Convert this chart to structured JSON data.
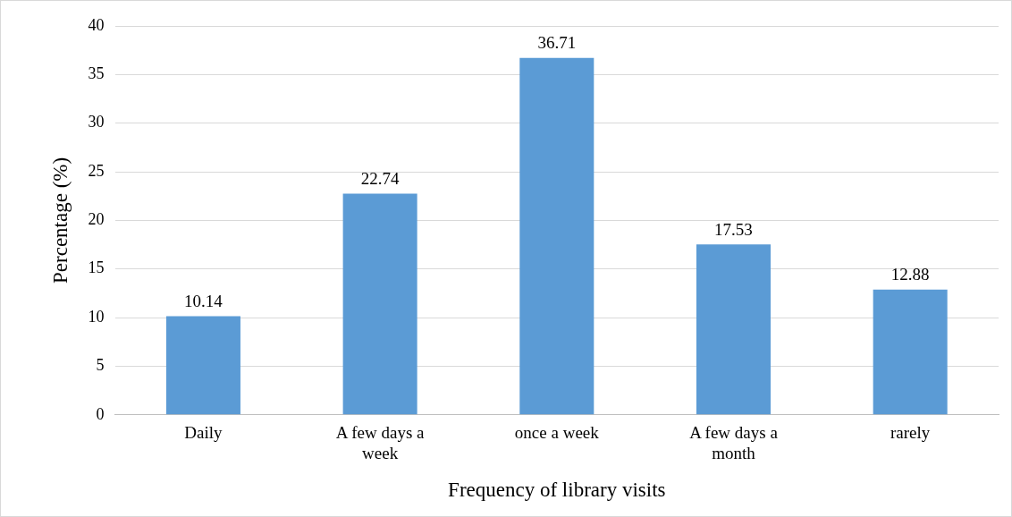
{
  "chart_data": {
    "type": "bar",
    "xlabel": "Frequency of library visits",
    "ylabel": "Percentage (%)",
    "categories": [
      "Daily",
      "A few days a week",
      "once a week",
      "A few days a month",
      "rarely"
    ],
    "values": [
      10.14,
      22.74,
      36.71,
      17.53,
      12.88
    ],
    "color": "#5b9bd5",
    "ylim": [
      0,
      40
    ],
    "yticks": [
      0,
      5,
      10,
      15,
      20,
      25,
      30,
      35,
      40
    ],
    "grid": "y",
    "legend": false,
    "data_labels": true
  }
}
